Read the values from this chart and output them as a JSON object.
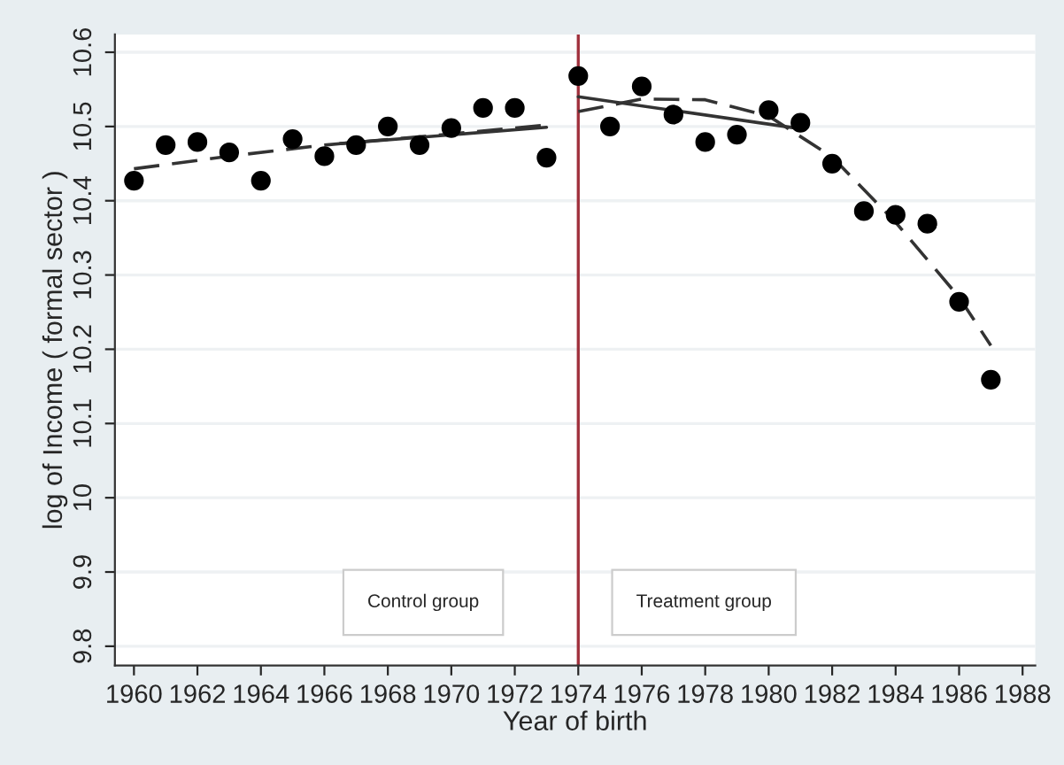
{
  "chart_data": {
    "type": "scatter",
    "xlabel": "Year of birth",
    "ylabel": "log of Income ( formal sector )",
    "x": [
      1960,
      1961,
      1962,
      1963,
      1964,
      1965,
      1966,
      1967,
      1968,
      1969,
      1970,
      1971,
      1972,
      1973,
      1974,
      1975,
      1976,
      1977,
      1978,
      1979,
      1980,
      1981,
      1982,
      1983,
      1984,
      1985,
      1986,
      1987
    ],
    "series": [
      {
        "color": "#000000",
        "marker": "circle",
        "values": [
          10.427,
          10.475,
          10.479,
          10.465,
          10.427,
          10.483,
          10.46,
          10.475,
          10.5,
          10.475,
          10.498,
          10.525,
          10.525,
          10.458,
          10.568,
          10.5,
          10.554,
          10.516,
          10.479,
          10.489,
          10.522,
          10.505,
          10.45,
          10.386,
          10.381,
          10.369,
          10.264,
          10.159
        ]
      },
      {
        "type": "line",
        "color": "#333333",
        "line_style": "dashed",
        "x": [
          1960,
          1963,
          1966,
          1970,
          1973
        ],
        "values": [
          10.443,
          10.46,
          10.475,
          10.49,
          10.502
        ]
      },
      {
        "type": "line",
        "color": "#333333",
        "line_style": "solid",
        "x": [
          1966.5,
          1973
        ],
        "values": [
          10.477,
          10.499
        ]
      },
      {
        "type": "line",
        "color": "#333333",
        "line_style": "solid",
        "x": [
          1974,
          1981
        ],
        "values": [
          10.54,
          10.497
        ]
      },
      {
        "type": "line",
        "color": "#333333",
        "line_style": "dashed",
        "x": [
          1974,
          1976,
          1978,
          1980,
          1982,
          1984,
          1986,
          1987
        ],
        "values": [
          10.52,
          10.537,
          10.536,
          10.514,
          10.459,
          10.371,
          10.27,
          10.205
        ]
      }
    ],
    "ref_lines": [
      {
        "axis": "x",
        "value": 1974,
        "color": "#a0303c"
      }
    ],
    "annotations": [
      "Control group",
      "Treatment group"
    ],
    "xlim": [
      1959.4,
      1988.4
    ],
    "ylim": [
      9.774,
      10.624
    ],
    "xticks": [
      1960,
      1962,
      1964,
      1966,
      1968,
      1970,
      1972,
      1974,
      1976,
      1978,
      1980,
      1982,
      1984,
      1986,
      1988
    ],
    "yticks": [
      9.8,
      9.9,
      10,
      10.1,
      10.2,
      10.3,
      10.4,
      10.5,
      10.6
    ],
    "grid": "y",
    "legend": false
  }
}
